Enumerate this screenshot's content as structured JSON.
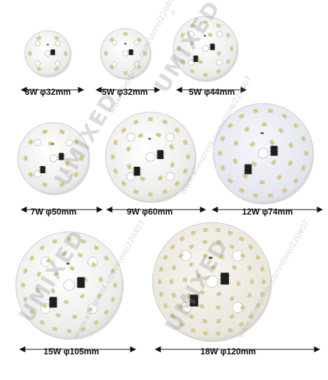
{
  "boards": [
    {
      "id": "b1",
      "caption": "3W φ32mm"
    },
    {
      "id": "b2",
      "caption": "5W φ32mm"
    },
    {
      "id": "b3",
      "caption": "5W φ44mm"
    },
    {
      "id": "b4",
      "caption": "7W φ50mm"
    },
    {
      "id": "b5",
      "caption": "9W φ60mm"
    },
    {
      "id": "b6",
      "caption": "12W φ74mm"
    },
    {
      "id": "b7",
      "caption": "15W φ105mm"
    },
    {
      "id": "b8",
      "caption": "18W φ120mm"
    }
  ],
  "watermark": {
    "brand": "UMIXED",
    "url": "www.aliexpress.com/store/220407",
    "reg": "R"
  },
  "colors": {
    "pcb": "#f1f1ee",
    "pcb_shadow": "#c9c9c4",
    "led_yellow": "#e6c200",
    "led_body": "#fafafa",
    "chip": "#1e1e1e",
    "caption_line": "#111111"
  }
}
